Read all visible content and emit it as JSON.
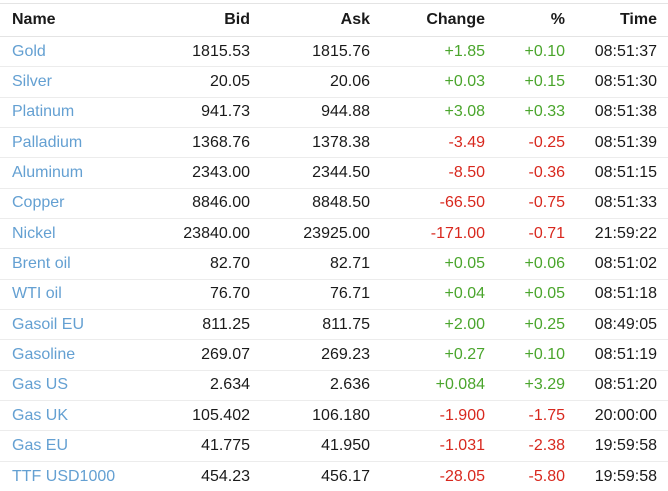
{
  "table": {
    "columns": [
      {
        "key": "name",
        "label": "Name"
      },
      {
        "key": "bid",
        "label": "Bid"
      },
      {
        "key": "ask",
        "label": "Ask"
      },
      {
        "key": "change",
        "label": "Change"
      },
      {
        "key": "pct",
        "label": "%"
      },
      {
        "key": "time",
        "label": "Time"
      }
    ],
    "rows": [
      {
        "name": "Gold",
        "bid": "1815.53",
        "ask": "1815.76",
        "change": "+1.85",
        "pct": "+0.10",
        "time": "08:51:37",
        "direction": "up"
      },
      {
        "name": "Silver",
        "bid": "20.05",
        "ask": "20.06",
        "change": "+0.03",
        "pct": "+0.15",
        "time": "08:51:30",
        "direction": "up"
      },
      {
        "name": "Platinum",
        "bid": "941.73",
        "ask": "944.88",
        "change": "+3.08",
        "pct": "+0.33",
        "time": "08:51:38",
        "direction": "up"
      },
      {
        "name": "Palladium",
        "bid": "1368.76",
        "ask": "1378.38",
        "change": "-3.49",
        "pct": "-0.25",
        "time": "08:51:39",
        "direction": "down"
      },
      {
        "name": "Aluminum",
        "bid": "2343.00",
        "ask": "2344.50",
        "change": "-8.50",
        "pct": "-0.36",
        "time": "08:51:15",
        "direction": "down"
      },
      {
        "name": "Copper",
        "bid": "8846.00",
        "ask": "8848.50",
        "change": "-66.50",
        "pct": "-0.75",
        "time": "08:51:33",
        "direction": "down"
      },
      {
        "name": "Nickel",
        "bid": "23840.00",
        "ask": "23925.00",
        "change": "-171.00",
        "pct": "-0.71",
        "time": "21:59:22",
        "direction": "down"
      },
      {
        "name": "Brent oil",
        "bid": "82.70",
        "ask": "82.71",
        "change": "+0.05",
        "pct": "+0.06",
        "time": "08:51:02",
        "direction": "up"
      },
      {
        "name": "WTI oil",
        "bid": "76.70",
        "ask": "76.71",
        "change": "+0.04",
        "pct": "+0.05",
        "time": "08:51:18",
        "direction": "up"
      },
      {
        "name": "Gasoil EU",
        "bid": "811.25",
        "ask": "811.75",
        "change": "+2.00",
        "pct": "+0.25",
        "time": "08:49:05",
        "direction": "up"
      },
      {
        "name": "Gasoline",
        "bid": "269.07",
        "ask": "269.23",
        "change": "+0.27",
        "pct": "+0.10",
        "time": "08:51:19",
        "direction": "up"
      },
      {
        "name": "Gas US",
        "bid": "2.634",
        "ask": "2.636",
        "change": "+0.084",
        "pct": "+3.29",
        "time": "08:51:20",
        "direction": "up"
      },
      {
        "name": "Gas UK",
        "bid": "105.402",
        "ask": "106.180",
        "change": "-1.900",
        "pct": "-1.75",
        "time": "20:00:00",
        "direction": "down"
      },
      {
        "name": "Gas EU",
        "bid": "41.775",
        "ask": "41.950",
        "change": "-1.031",
        "pct": "-2.38",
        "time": "19:59:58",
        "direction": "down"
      },
      {
        "name": "TTF USD1000",
        "bid": "454.23",
        "ask": "456.17",
        "change": "-28.05",
        "pct": "-5.80",
        "time": "19:59:58",
        "direction": "down"
      }
    ]
  },
  "colors": {
    "up": "#4aa52c",
    "down": "#d8281e",
    "name-link": "#64a0d2",
    "text": "#1a1a1a",
    "separator": "#e4e4e4",
    "separator-light": "#ececec"
  }
}
